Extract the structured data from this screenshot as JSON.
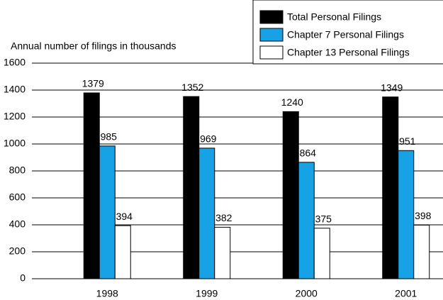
{
  "chart_data": {
    "type": "bar",
    "y_axis_label": "Annual number of filings in thousands",
    "categories": [
      "1998",
      "1999",
      "2000",
      "2001"
    ],
    "series": [
      {
        "name": "Total Personal Filings",
        "color": "#000000",
        "values": [
          1379,
          1352,
          1240,
          1349
        ]
      },
      {
        "name": "Chapter 7 Personal Filings",
        "color": "#17a2e6",
        "values": [
          985,
          969,
          864,
          951
        ]
      },
      {
        "name": "Chapter 13 Personal Filings",
        "color": "#ffffff",
        "values": [
          394,
          382,
          375,
          398
        ]
      }
    ],
    "ylim": [
      0,
      1600
    ],
    "yticks": [
      0,
      200,
      400,
      600,
      800,
      1000,
      1200,
      1400,
      1600
    ],
    "grid": true,
    "legend": "top-right"
  }
}
